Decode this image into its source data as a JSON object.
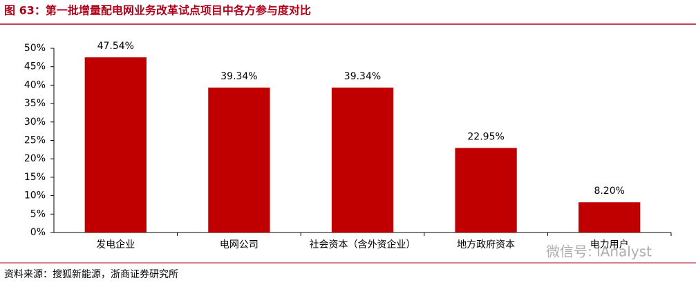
{
  "chart_data": {
    "type": "bar",
    "title": "图 63：第一批增量配电网业务改革试点项目中各方参与度对比",
    "categories": [
      "发电企业",
      "电网公司",
      "社会资本（含外资企业）",
      "地方政府资本",
      "电力用户"
    ],
    "values": [
      47.54,
      39.34,
      39.34,
      22.95,
      8.2
    ],
    "value_labels": [
      "47.54%",
      "39.34%",
      "39.34%",
      "22.95%",
      "8.20%"
    ],
    "color": "#c00000",
    "ylim": [
      0,
      50
    ],
    "yticks": [
      {
        "value": 0,
        "label": "0%"
      },
      {
        "value": 5,
        "label": "5%"
      },
      {
        "value": 10,
        "label": "10%"
      },
      {
        "value": 15,
        "label": "15%"
      },
      {
        "value": 20,
        "label": "20%"
      },
      {
        "value": 25,
        "label": "25%"
      },
      {
        "value": 30,
        "label": "30%"
      },
      {
        "value": 35,
        "label": "35%"
      },
      {
        "value": 40,
        "label": "40%"
      },
      {
        "value": 45,
        "label": "45%"
      },
      {
        "value": 50,
        "label": "50%"
      }
    ],
    "grid": false,
    "source": "资料来源：搜狐新能源，浙商证券研究所",
    "watermark": "微信号: iAnalyst"
  }
}
